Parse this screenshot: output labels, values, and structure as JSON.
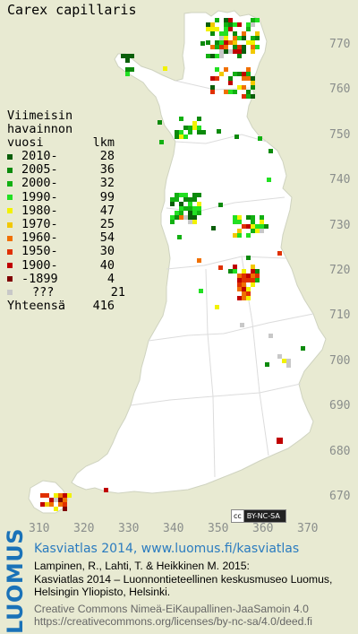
{
  "title": "Carex capillaris",
  "legend": {
    "header_line1": "Viimeisin",
    "header_line2": "havainnon",
    "header_col1": "vuosi",
    "header_col2": "lkm",
    "rows": [
      {
        "label": "2010-",
        "count": "28",
        "color": "#0a5e0a"
      },
      {
        "label": "2005-",
        "count": "36",
        "color": "#0c8a0c"
      },
      {
        "label": "2000-",
        "count": "32",
        "color": "#12b012"
      },
      {
        "label": "1990-",
        "count": "99",
        "color": "#22e022"
      },
      {
        "label": "1980-",
        "count": "47",
        "color": "#f2f200"
      },
      {
        "label": "1970-",
        "count": "25",
        "color": "#f2c800"
      },
      {
        "label": "1960-",
        "count": "54",
        "color": "#f07000"
      },
      {
        "label": "1950-",
        "count": "30",
        "color": "#e03000"
      },
      {
        "label": "1900-",
        "count": "40",
        "color": "#c00000"
      },
      {
        "label": "-1899",
        "count": "4",
        "color": "#800000"
      },
      {
        "label": "???",
        "count": "21",
        "color": "#c8c8c8"
      }
    ],
    "total_label": "Yhteensä",
    "total_count": "416"
  },
  "y_axis_labels": [
    "770",
    "760",
    "750",
    "740",
    "730",
    "720",
    "710",
    "700",
    "690",
    "680",
    "670"
  ],
  "x_axis_labels": [
    "310",
    "320",
    "330",
    "340",
    "350",
    "360",
    "370"
  ],
  "license_badge": {
    "left": "cc",
    "right": "BY-NC-SA"
  },
  "footer": {
    "brand": "LUOMUS",
    "line1": "Kasviatlas 2014, www.luomus.fi/kasviatlas",
    "line2": "Lampinen, R., Lahti, T. & Heikkinen M. 2015:",
    "line3": "Kasviatlas 2014 – Luonnontieteellinen keskusmuseo Luomus,",
    "line4": "Helsingin Yliopisto, Helsinki.",
    "line5": "Creative Commons Nimeä-EiKaupallinen-JaaSamoin 4.0",
    "line6": "https://creativecommons.org/licenses/by-nc-sa/4.0/deed.fi"
  },
  "colors": {
    "background": "#e8ead2",
    "land": "#ffffff",
    "borders": "#d8d8d8",
    "accent": "#1a72b8"
  }
}
